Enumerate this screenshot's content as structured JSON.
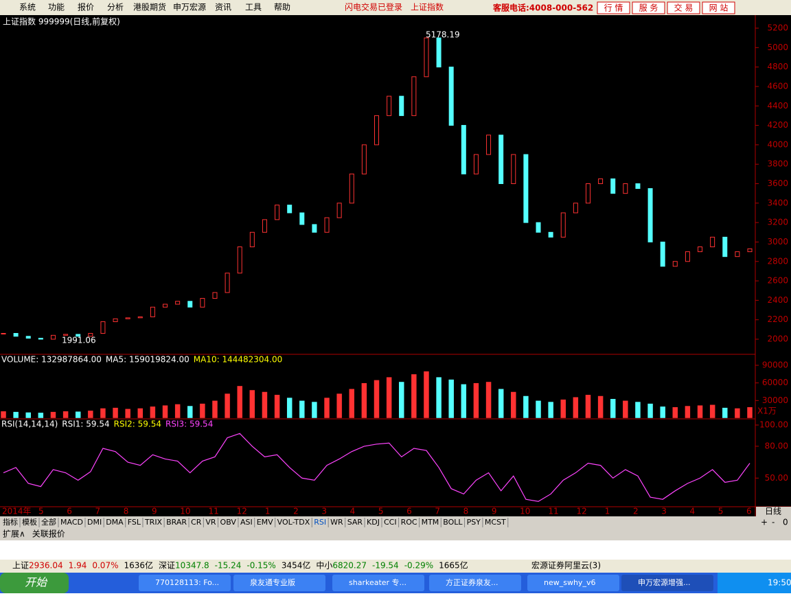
{
  "menu": [
    "系统",
    "功能",
    "报价",
    "分析",
    "港股期货",
    "申万宏源",
    "资讯",
    "工具",
    "帮助"
  ],
  "menu_status": [
    "闪电交易已登录",
    "上证指数"
  ],
  "hotline": "客服电话:4008-000-562",
  "top_buttons": [
    "行 情",
    "服 务",
    "交 易",
    "网 站"
  ],
  "price_title": "上证指数 999999(日线,前复权)",
  "high_label": "5178.19",
  "low_label": "1991.06",
  "chart_data": [
    {
      "type": "candle",
      "color": "#ff3232",
      "down_color": "#54ffff",
      "values": [
        2060,
        2030,
        2010,
        2000,
        2040,
        2050,
        2030,
        2060,
        2180,
        2210,
        2220,
        2230,
        2330,
        2360,
        2390,
        2330,
        2420,
        2480,
        2680,
        2950,
        3100,
        3230,
        3380,
        3300,
        3180,
        3100,
        3250,
        3400,
        3700,
        4000,
        4300,
        4500,
        4300,
        4700,
        5100,
        4800,
        4200,
        3700,
        3900,
        4100,
        3600,
        3900,
        3200,
        3100,
        3050,
        3300,
        3400,
        3600,
        3650,
        3500,
        3600,
        3550,
        3000,
        2750,
        2800,
        2900,
        2950,
        3050,
        2850,
        2900,
        2930
      ],
      "ylim": [
        2000,
        5200
      ],
      "yticks": [
        2000,
        2200,
        2400,
        2600,
        2800,
        3000,
        3200,
        3400,
        3600,
        3800,
        4000,
        4200,
        4400,
        4600,
        4800,
        5000,
        5200
      ]
    },
    {
      "type": "bar",
      "header": [
        {
          "text": "VOLUME: 132987864.00",
          "color": "#ffffff"
        },
        {
          "text": "MA5: 159019824.00",
          "color": "#ffffff"
        },
        {
          "text": "MA10: 144482304.00",
          "color": "#ffff00"
        }
      ],
      "values": [
        12000,
        11000,
        10000,
        9500,
        11000,
        12000,
        11500,
        13000,
        17000,
        18000,
        16000,
        17000,
        20000,
        22000,
        24000,
        21000,
        25000,
        30000,
        42000,
        55000,
        48000,
        45000,
        40000,
        35000,
        30000,
        28000,
        35000,
        42000,
        50000,
        60000,
        65000,
        70000,
        62000,
        75000,
        80000,
        70000,
        66000,
        58000,
        60000,
        62000,
        50000,
        45000,
        38000,
        30000,
        28000,
        32000,
        36000,
        40000,
        38000,
        33000,
        30000,
        28000,
        25000,
        20000,
        19000,
        21000,
        22000,
        23000,
        18000,
        17000,
        19000
      ],
      "ylim": [
        0,
        90000
      ],
      "yticks": [
        30000,
        60000,
        90000
      ],
      "unit": "X1万"
    },
    {
      "type": "line",
      "color": "#ff44ff",
      "header": [
        {
          "text": "RSI(14,14,14)",
          "color": "#ffffff"
        },
        {
          "text": "RSI1: 59.54",
          "color": "#ffffff"
        },
        {
          "text": "RSI2: 59.54",
          "color": "#ffff00"
        },
        {
          "text": "RSI3: 59.54",
          "color": "#ff44ff"
        }
      ],
      "values": [
        55,
        60,
        45,
        42,
        58,
        55,
        48,
        56,
        78,
        75,
        65,
        62,
        72,
        68,
        66,
        55,
        66,
        70,
        88,
        92,
        80,
        70,
        72,
        60,
        50,
        48,
        62,
        68,
        75,
        80,
        82,
        83,
        70,
        78,
        76,
        60,
        40,
        35,
        48,
        55,
        38,
        52,
        30,
        28,
        35,
        48,
        55,
        64,
        62,
        50,
        58,
        52,
        32,
        30,
        38,
        45,
        50,
        58,
        46,
        48,
        64
      ],
      "ylim": [
        23,
        100
      ],
      "yticks": [
        {
          "value": 50,
          "label": "50.00"
        },
        {
          "value": 80,
          "label": "80.00"
        },
        {
          "value": 100,
          "label": "100.00"
        }
      ]
    }
  ],
  "months": [
    "2014年",
    "5",
    "6",
    "7",
    "8",
    "9",
    "10",
    "11",
    "12",
    "1",
    "2",
    "3",
    "4",
    "5",
    "6",
    "7",
    "8",
    "9",
    "10",
    "11",
    "12",
    "1",
    "2",
    "3",
    "4",
    "5",
    "6"
  ],
  "period": "日线",
  "tabs": [
    "指标",
    "模板",
    "全部",
    "MACD",
    "DMI",
    "DMA",
    "FSL",
    "TRIX",
    "BRAR",
    "CR",
    "VR",
    "OBV",
    "ASI",
    "EMV",
    "VOL-TDX",
    "RSI",
    "WR",
    "SAR",
    "KDJ",
    "CCI",
    "ROC",
    "MTM",
    "BOLL",
    "PSY",
    "MCST"
  ],
  "zoom": [
    "+",
    "-",
    "0"
  ],
  "ext_tabs": [
    "扩展∧",
    "关联报价"
  ],
  "status": [
    {
      "text": "上证",
      "color": "#000000"
    },
    {
      "text": "2936.04",
      "color": "#d00000"
    },
    {
      "text": "1.94",
      "color": "#d00000"
    },
    {
      "text": "0.07%",
      "color": "#d00000"
    },
    {
      "text": "1636亿",
      "color": "#000000"
    },
    {
      "text": "深证",
      "color": "#000000"
    },
    {
      "text": "10347.8",
      "color": "#008000"
    },
    {
      "text": "-15.24",
      "color": "#008000"
    },
    {
      "text": "-0.15%",
      "color": "#008000"
    },
    {
      "text": "3454亿",
      "color": "#000000"
    },
    {
      "text": "中小",
      "color": "#000000"
    },
    {
      "text": "6820.27",
      "color": "#008000"
    },
    {
      "text": "-19.54",
      "color": "#008000"
    },
    {
      "text": "-0.29%",
      "color": "#008000"
    },
    {
      "text": "1665亿",
      "color": "#000000"
    }
  ],
  "broker": "宏源证券阿里云(3)",
  "start": "开始",
  "tasks": [
    "770128113: Fo...",
    "泉友通专业版",
    "sharkeater 专...",
    "方正证券泉友...",
    "new_swhy_v6",
    "申万宏源增强..."
  ],
  "clock": "19:50"
}
